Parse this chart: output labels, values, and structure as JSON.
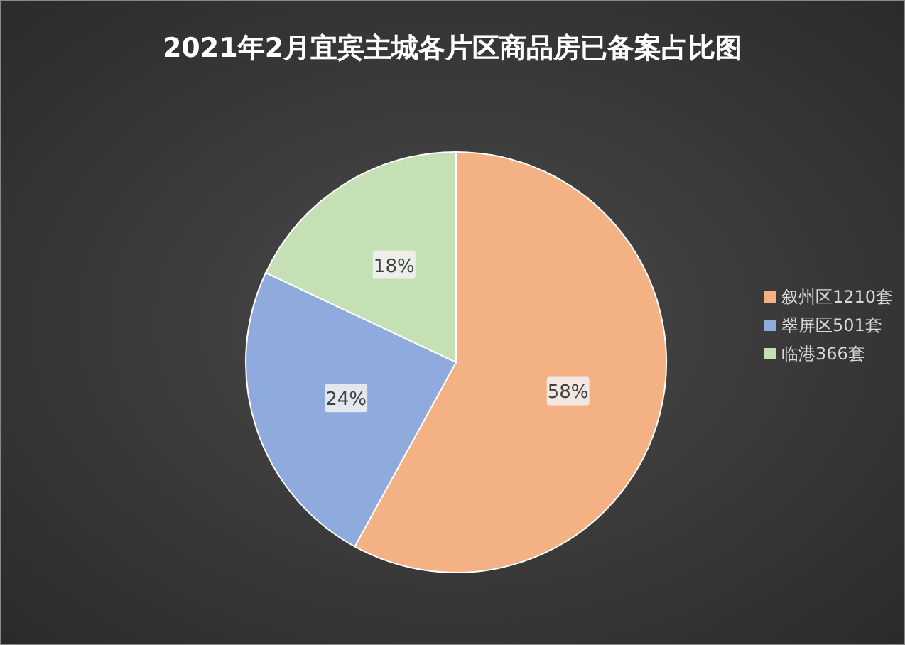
{
  "chart_data": {
    "type": "pie",
    "title": "2021年2月宜宾主城各片区商品房已备案占比图",
    "categories": [
      "叙州区1210套",
      "翠屏区501套",
      "临港366套"
    ],
    "values": [
      58,
      24,
      18
    ],
    "colors": [
      "#f4b183",
      "#8faadc",
      "#c5e0b4"
    ],
    "value_labels": [
      "58%",
      "24%",
      "18%"
    ],
    "legend": "right"
  }
}
